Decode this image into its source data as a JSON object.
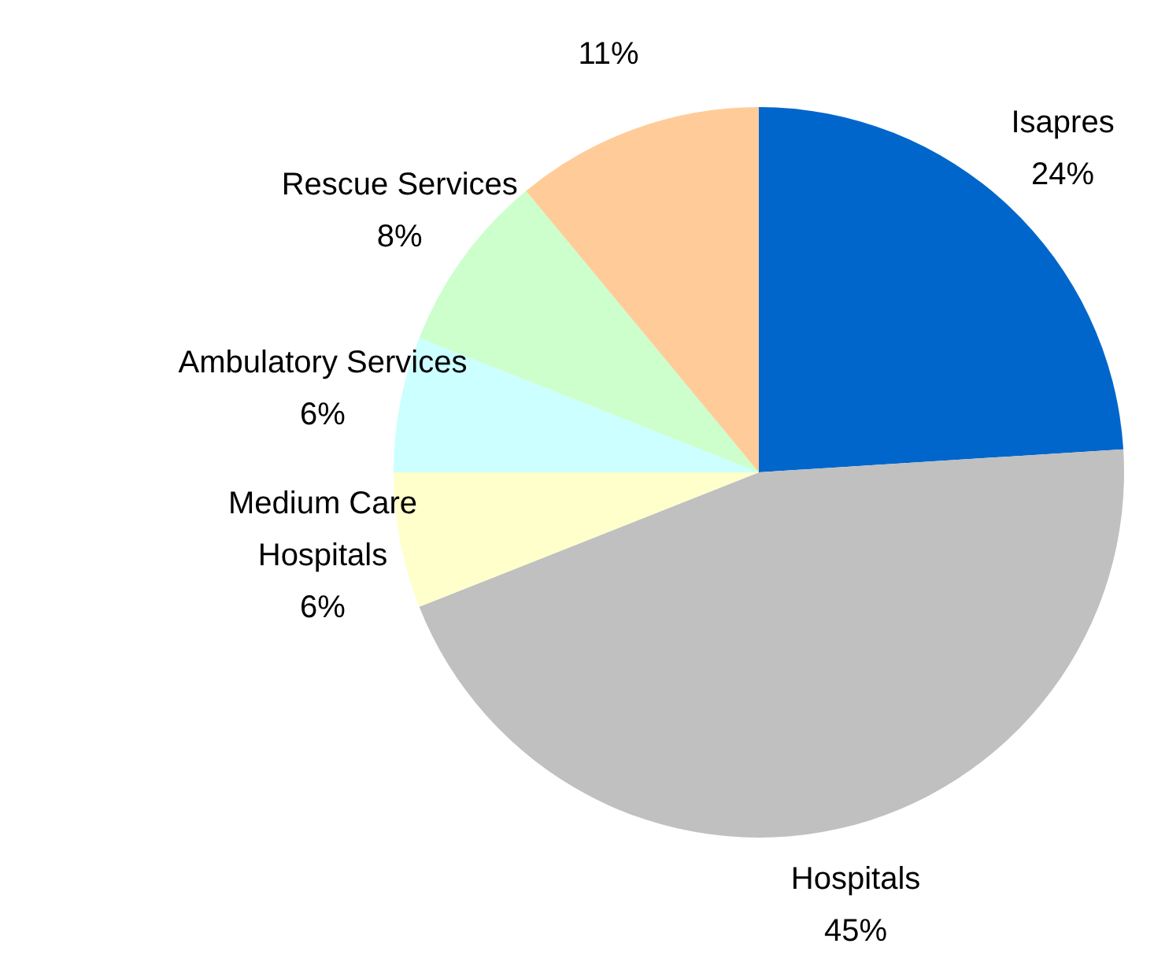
{
  "chart_data": {
    "type": "pie",
    "categories": [
      "Isapres",
      "Hospitals",
      "Medium Care Hospitals",
      "Ambulatory Services",
      "Rescue Services",
      null
    ],
    "values": [
      24,
      45,
      6,
      6,
      8,
      11
    ],
    "value_labels": [
      "24%",
      "45%",
      "6%",
      "6%",
      "8%",
      "11%"
    ],
    "colors": [
      "#0066cc",
      "#c0c0c0",
      "#ffffcc",
      "#ccffff",
      "#ccffcc",
      "#ffcc99"
    ]
  }
}
